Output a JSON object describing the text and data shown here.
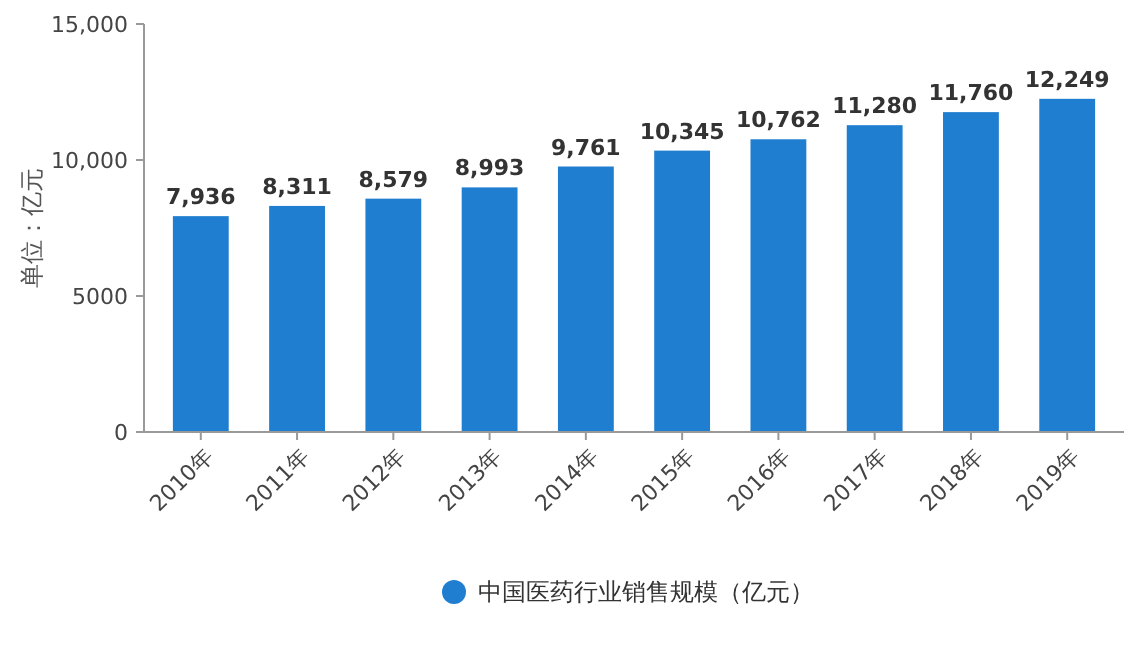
{
  "chart_data": {
    "type": "bar",
    "ylabel": "单位：亿元",
    "categories": [
      "2010年",
      "2011年",
      "2012年",
      "2013年",
      "2014年",
      "2015年",
      "2016年",
      "2017年",
      "2018年",
      "2019年"
    ],
    "series": [
      {
        "name": "中国医药行业销售规模（亿元）",
        "color": "#1f7ed0",
        "values": [
          7936,
          8311,
          8579,
          8993,
          9761,
          10345,
          10762,
          11280,
          11760,
          12249
        ],
        "value_labels": [
          "7,936",
          "8,311",
          "8,579",
          "8,993",
          "9,761",
          "10,345",
          "10,762",
          "11,280",
          "11,760",
          "12,249"
        ]
      }
    ],
    "ylim": [
      0,
      15000
    ],
    "yticks": [
      0,
      5000,
      {
        "value": 10000,
        "label": "10,000"
      },
      {
        "value": 15000,
        "label": "15,000"
      }
    ],
    "legend": "bottom"
  }
}
